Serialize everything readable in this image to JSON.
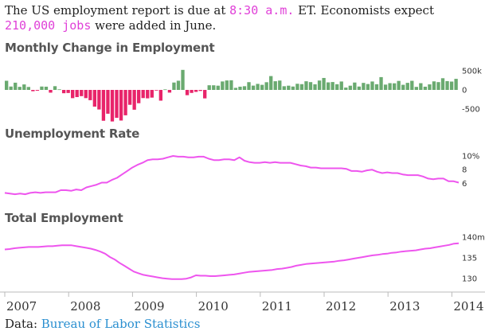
{
  "intro": {
    "part1": "The US employment report is due at ",
    "time": "8:30 a.m.",
    "part2": " ET. Economists expect ",
    "estimate": "210,000 jobs",
    "part3": " were added in June."
  },
  "source": {
    "label": "Data: ",
    "link": "Bureau of Labor Statistics"
  },
  "colors": {
    "positive": "#6aaa70",
    "negative": "#e8246a",
    "line": "#ee55ee",
    "highlight": "#e040d8",
    "link": "#2a8fd0"
  },
  "chart_data": [
    {
      "type": "bar",
      "title": "Monthly Change in Employment",
      "ytick_labels": [
        "500k",
        "0",
        "-500"
      ],
      "yticks": [
        500,
        0,
        -500
      ],
      "ylim": [
        -600,
        600
      ],
      "x_start": "2007-01",
      "values": [
        238,
        88,
        188,
        80,
        143,
        77,
        -34,
        -20,
        88,
        84,
        -71,
        97,
        15,
        -86,
        -80,
        -214,
        -186,
        -162,
        -213,
        -267,
        -434,
        -509,
        -802,
        -619,
        -820,
        -726,
        -796,
        -660,
        -387,
        -515,
        -346,
        -212,
        -219,
        -200,
        -7,
        -279,
        14,
        -70,
        192,
        239,
        521,
        -137,
        -78,
        -51,
        -27,
        -220,
        121,
        120,
        110,
        220,
        246,
        251,
        54,
        84,
        96,
        202,
        112,
        157,
        132,
        200,
        360,
        226,
        243,
        96,
        110,
        88,
        160,
        150,
        225,
        203,
        146,
        244,
        311,
        196,
        205,
        148,
        219,
        61,
        110,
        192,
        88,
        183,
        153,
        219,
        148,
        333,
        138,
        176,
        172,
        234,
        133,
        184,
        237,
        79,
        175,
        84,
        144,
        222,
        203,
        304,
        229,
        217,
        288
      ],
      "grid": false,
      "legend": "none"
    },
    {
      "type": "line",
      "title": "Unemployment Rate",
      "ytick_labels": [
        "10%",
        "8",
        "6"
      ],
      "yticks": [
        10,
        8,
        6
      ],
      "ylim": [
        4.3,
        10.7
      ],
      "x_start": "2007-01",
      "values": [
        4.6,
        4.5,
        4.4,
        4.5,
        4.4,
        4.6,
        4.7,
        4.6,
        4.7,
        4.7,
        4.7,
        5.0,
        5.0,
        4.9,
        5.1,
        5.0,
        5.4,
        5.6,
        5.8,
        6.1,
        6.1,
        6.5,
        6.8,
        7.3,
        7.8,
        8.3,
        8.7,
        9.0,
        9.4,
        9.5,
        9.5,
        9.6,
        9.8,
        10.0,
        9.9,
        9.9,
        9.8,
        9.8,
        9.9,
        9.9,
        9.6,
        9.4,
        9.4,
        9.5,
        9.5,
        9.4,
        9.8,
        9.3,
        9.1,
        9.0,
        9.0,
        9.1,
        9.0,
        9.1,
        9.0,
        9.0,
        9.0,
        8.8,
        8.6,
        8.5,
        8.3,
        8.3,
        8.2,
        8.2,
        8.2,
        8.2,
        8.2,
        8.1,
        7.8,
        7.8,
        7.7,
        7.9,
        8.0,
        7.7,
        7.5,
        7.6,
        7.5,
        7.5,
        7.3,
        7.2,
        7.2,
        7.2,
        7.0,
        6.7,
        6.6,
        6.7,
        6.7,
        6.3,
        6.3,
        6.1
      ],
      "grid": false,
      "legend": "none"
    },
    {
      "type": "line",
      "title": "Total Employment",
      "ytick_labels": [
        "140m",
        "135",
        "130"
      ],
      "yticks": [
        140,
        135,
        130
      ],
      "ylim": [
        128.5,
        141.5
      ],
      "x_start": "2007-01",
      "values": [
        137.0,
        137.1,
        137.3,
        137.4,
        137.5,
        137.6,
        137.6,
        137.6,
        137.7,
        137.8,
        137.8,
        137.9,
        138.0,
        138.0,
        138.0,
        137.8,
        137.6,
        137.4,
        137.2,
        136.9,
        136.5,
        136.0,
        135.2,
        134.6,
        133.8,
        133.1,
        132.4,
        131.7,
        131.3,
        130.9,
        130.7,
        130.5,
        130.3,
        130.1,
        130.0,
        129.9,
        129.9,
        129.9,
        130.0,
        130.3,
        130.8,
        130.7,
        130.7,
        130.6,
        130.6,
        130.7,
        130.8,
        130.9,
        131.0,
        131.2,
        131.4,
        131.6,
        131.7,
        131.8,
        131.9,
        132.0,
        132.1,
        132.3,
        132.4,
        132.6,
        132.8,
        133.1,
        133.3,
        133.5,
        133.6,
        133.7,
        133.8,
        133.9,
        134.0,
        134.1,
        134.3,
        134.4,
        134.6,
        134.8,
        135.0,
        135.2,
        135.4,
        135.6,
        135.7,
        135.9,
        136.0,
        136.2,
        136.3,
        136.5,
        136.6,
        136.7,
        136.8,
        137.0,
        137.2,
        137.3,
        137.5,
        137.7,
        137.9,
        138.1,
        138.4,
        138.5
      ],
      "grid": false,
      "legend": "none"
    }
  ],
  "x_axis": {
    "labels": [
      "2007",
      "2008",
      "2009",
      "2010",
      "2011",
      "2012",
      "2013",
      "2014"
    ]
  }
}
